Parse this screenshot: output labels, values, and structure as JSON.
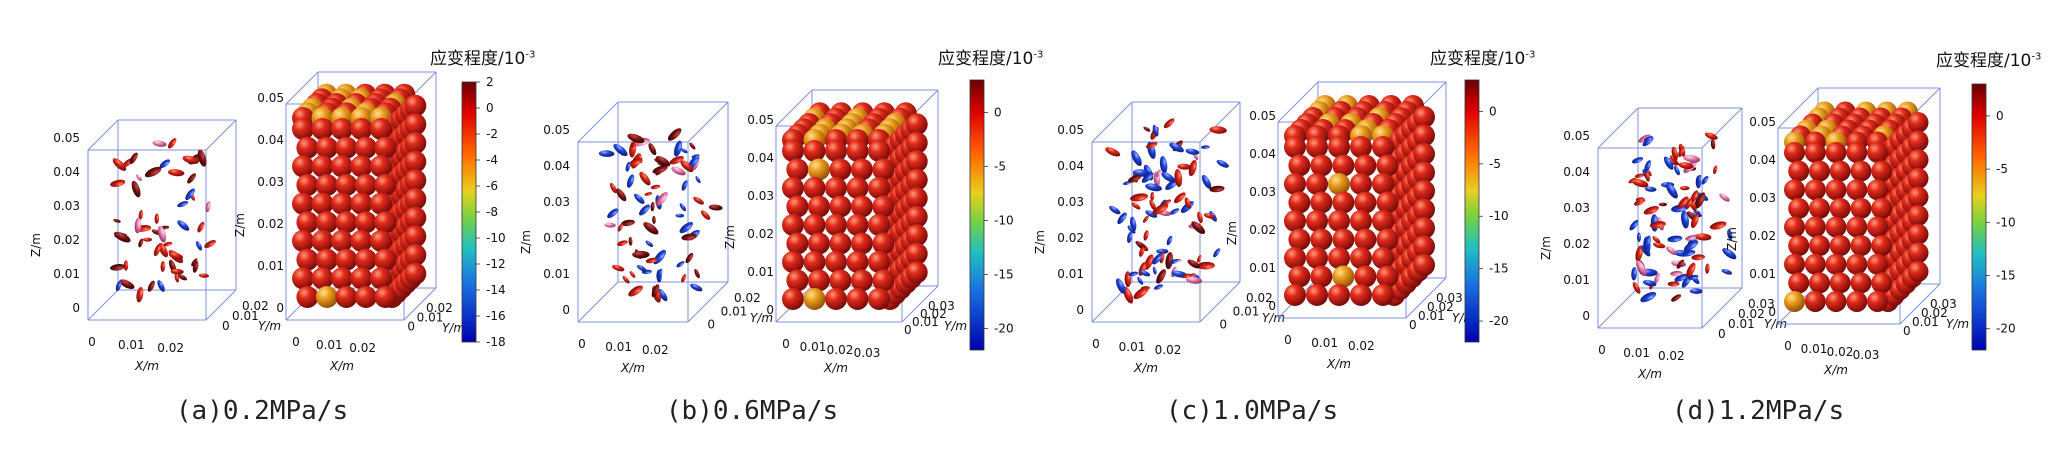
{
  "colorbar_title": "应变程度/10",
  "colorbar_title_exp": "-3",
  "axis_labels": {
    "x": "X/m",
    "y": "Y/m",
    "z": "Z/m"
  },
  "panels": [
    {
      "caption": "(a)0.2MPa/s",
      "z_ticks": [
        "0.05",
        "0.04",
        "0.03",
        "0.02",
        "0.01",
        "0"
      ],
      "x_ticks": [
        "0",
        "0.01",
        "0.02"
      ],
      "y_ticks": [
        "0.02",
        "0.01",
        "0"
      ],
      "cbar_ticks": [
        "2",
        "0",
        "-2",
        "-4",
        "-6",
        "-8",
        "-10",
        "-12",
        "-14",
        "-16",
        "-18"
      ],
      "cbar_range": [
        -18,
        2
      ]
    },
    {
      "caption": "(b)0.6MPa/s",
      "z_ticks": [
        "0.05",
        "0.04",
        "0.03",
        "0.02",
        "0.01",
        "0"
      ],
      "x_ticks": [
        "0",
        "0.01",
        "0.02"
      ],
      "y_ticks": [
        "0.02",
        "0.01",
        "0"
      ],
      "x_ticks_solid": [
        "0",
        "0.01",
        "0.02",
        "0.03"
      ],
      "y_ticks_solid": [
        "0.03",
        "0.02",
        "0.01",
        "0"
      ],
      "cbar_ticks": [
        "0",
        "-5",
        "-10",
        "-15",
        "-20"
      ],
      "cbar_range": [
        -22,
        3
      ]
    },
    {
      "caption": "(c)1.0MPa/s",
      "z_ticks": [
        "0.05",
        "0.04",
        "0.03",
        "0.02",
        "0.01",
        "0"
      ],
      "x_ticks": [
        "0",
        "0.01",
        "0.02"
      ],
      "y_ticks": [
        "0.02",
        "0.01",
        "0"
      ],
      "y_ticks_solid": [
        "0.03",
        "0.02",
        "0.01",
        "0"
      ],
      "cbar_ticks": [
        "0",
        "-5",
        "-10",
        "-15",
        "-20"
      ],
      "cbar_range": [
        -22,
        3
      ]
    },
    {
      "caption": "(d)1.2MPa/s",
      "z_ticks": [
        "0.05",
        "0.04",
        "0.03",
        "0.02",
        "0.01",
        "0"
      ],
      "x_ticks": [
        "0",
        "0.01",
        "0.02"
      ],
      "y_ticks": [
        "0.03",
        "0.02",
        "0.01",
        "0"
      ],
      "x_ticks_solid": [
        "0",
        "0.01",
        "0.02",
        "0.03"
      ],
      "y_ticks_solid": [
        "0.03",
        "0.02",
        "0.01",
        "0"
      ],
      "cbar_ticks": [
        "0",
        "-5",
        "-10",
        "-15",
        "-20"
      ],
      "cbar_range": [
        -22,
        3
      ]
    }
  ],
  "colors": {
    "box_line": "#8090e0",
    "particle_red": "#c81818",
    "particle_dark": "#6a0a0a",
    "particle_blue": "#1a3cd8",
    "cbar_top": "#6a0000",
    "cbar_bottom": "#0000b0"
  }
}
